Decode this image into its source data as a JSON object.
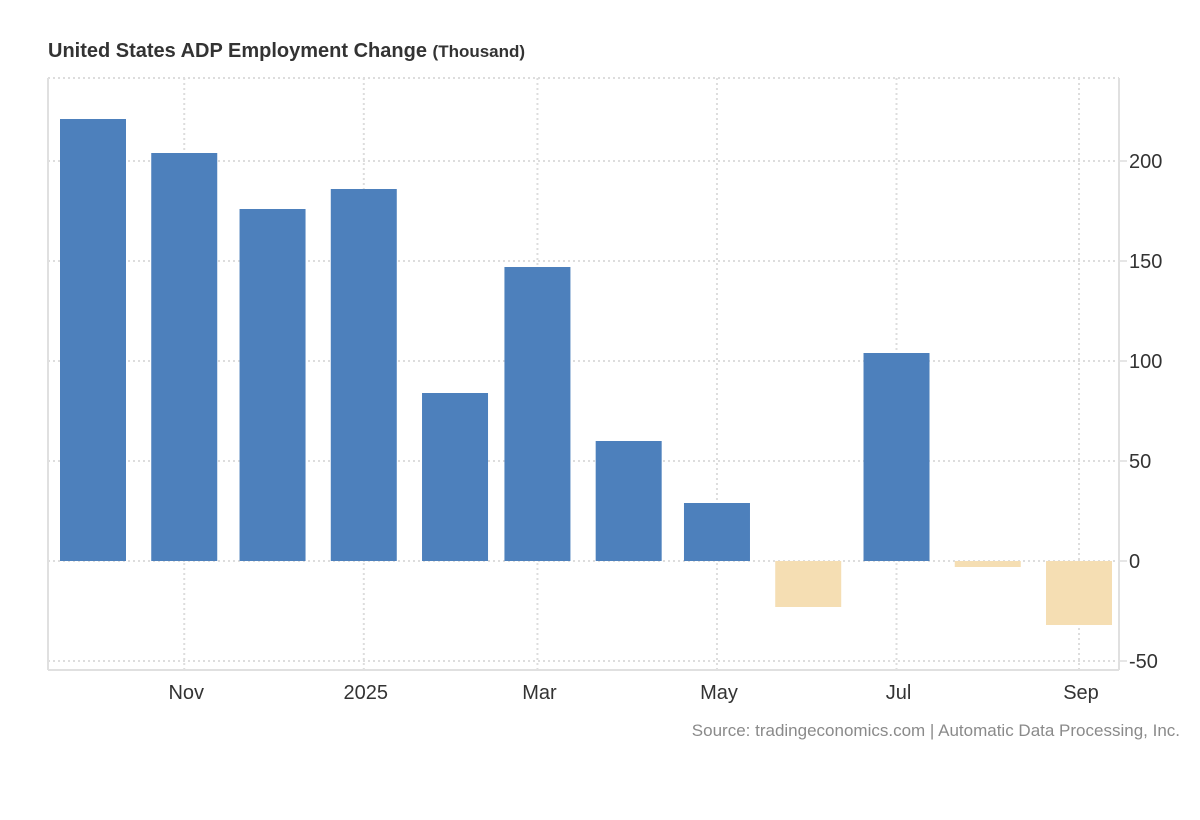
{
  "chart_data": {
    "type": "bar",
    "title": "United States ADP Employment Change",
    "unit": "(Thousand)",
    "source": "Source: tradingeconomics.com | Automatic Data Processing, Inc.",
    "categories": [
      "2024-10",
      "2024-11",
      "2024-12",
      "2025-01",
      "2025-02",
      "2025-03",
      "2025-04",
      "2025-05",
      "2025-06",
      "2025-07",
      "2025-08",
      "2025-09"
    ],
    "values": [
      221,
      204,
      176,
      186,
      84,
      147,
      60,
      29,
      -23,
      104,
      -3,
      -32
    ],
    "x_ticks": [
      {
        "date": "2024-11",
        "label": "Nov"
      },
      {
        "date": "2025-01",
        "label": "2025"
      },
      {
        "date": "2025-03",
        "label": "Mar"
      },
      {
        "date": "2025-05",
        "label": "May"
      },
      {
        "date": "2025-07",
        "label": "Jul"
      },
      {
        "date": "2025-09",
        "label": "Sep"
      }
    ],
    "y_ticks": [
      200,
      150,
      100,
      50,
      0,
      -50
    ],
    "ylim": [
      -55,
      241
    ],
    "y_axis_side": "right",
    "grid": true,
    "colors": {
      "positive": "#4d80bc",
      "negative": "#f5deb3",
      "grid": "#dddddd",
      "text": "#333333"
    }
  }
}
